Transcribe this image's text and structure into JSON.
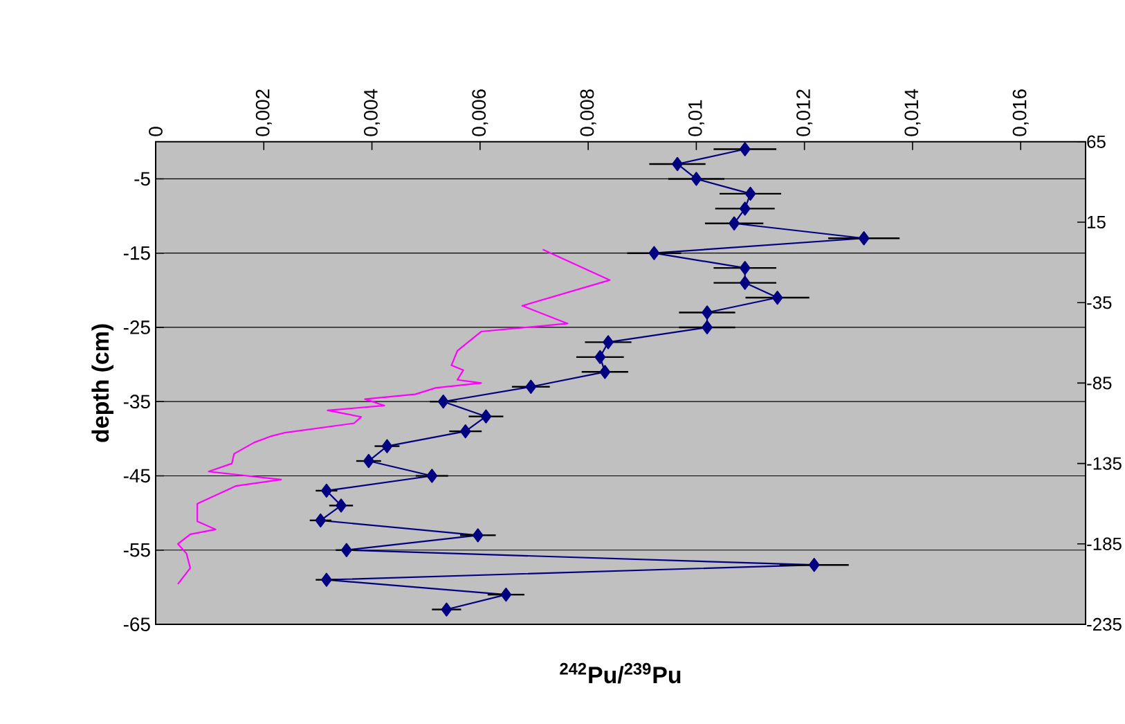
{
  "chart_data": {
    "type": "line",
    "xlabel": "$^{242}$Pu/$^{239}$Pu",
    "ylabel": "depth (cm)",
    "xlim": [
      0,
      0.0172
    ],
    "xticks": [
      0,
      {
        "value": 0.002,
        "label": "0,002"
      },
      {
        "value": 0.004,
        "label": "0,004"
      },
      {
        "value": 0.006,
        "label": "0,006"
      },
      {
        "value": 0.008,
        "label": "0,008"
      },
      {
        "value": 0.01,
        "label": "0,01"
      },
      {
        "value": 0.012,
        "label": "0,012"
      },
      {
        "value": 0.014,
        "label": "0,014"
      },
      {
        "value": 0.016,
        "label": "0,016"
      }
    ],
    "ylim": [
      -65,
      0
    ],
    "yticks": [
      -5,
      -15,
      -25,
      -35,
      -45,
      -55,
      -65
    ],
    "y2lim": [
      -235,
      65
    ],
    "y2ticks": [
      65,
      15,
      -35,
      -85,
      -135,
      -185,
      -235
    ],
    "grid": "y",
    "series": [
      {
        "color": "#000080",
        "marker": "diamond",
        "x": [
          0.0109,
          0.00965,
          0.01,
          0.011,
          0.0109,
          0.0107,
          0.0131,
          0.00922,
          0.0109,
          0.0109,
          0.0115,
          0.0102,
          0.0102,
          0.00837,
          0.00822,
          0.00831,
          0.00694,
          0.00532,
          0.00611,
          0.00573,
          0.00428,
          0.00394,
          0.00511,
          0.00316,
          0.00343,
          0.00305,
          0.00596,
          0.00353,
          0.01218,
          0.00316,
          0.00648,
          0.00538
        ],
        "values": [
          -1,
          -3,
          -5,
          -7,
          -9,
          -11,
          -13,
          -15,
          -17,
          -19,
          -21,
          -23,
          -25,
          -27,
          -29,
          -31,
          -33,
          -35,
          -37,
          -39,
          -41,
          -43,
          -45,
          -47,
          -49,
          -51,
          -53,
          -55,
          -57,
          -59,
          -61,
          -63
        ],
        "xerrors": [
          0.00058,
          0.00052,
          0.00052,
          0.00057,
          0.00055,
          0.00054,
          0.00066,
          0.0005,
          0.00058,
          0.00058,
          0.00059,
          0.00052,
          0.00052,
          0.00043,
          0.00044,
          0.00043,
          0.00035,
          0.00025,
          0.00032,
          0.0003,
          0.00023,
          0.00023,
          0.0003,
          0.0002,
          0.00022,
          0.0002,
          0.00033,
          0.0002,
          0.00064,
          0.0002,
          0.00034,
          0.00027
        ]
      },
      {
        "color": "#ff00ff",
        "marker": "none",
        "axis": "y2",
        "x": [
          0.00716,
          0.0084,
          0.00678,
          0.00762,
          0.00602,
          0.00558,
          0.00547,
          0.00569,
          0.00558,
          0.00602,
          0.00518,
          0.0048,
          0.00387,
          0.00423,
          0.00318,
          0.0038,
          0.00367,
          0.00237,
          0.00214,
          0.00182,
          0.00145,
          0.00141,
          0.00098,
          0.00232,
          0.00148,
          0.00077,
          0.00077,
          0.00111,
          0.00064,
          0.00041,
          0.00057,
          0.00064,
          0.00041
        ],
        "values": [
          -2,
          -21,
          -37,
          -48,
          -53,
          -65,
          -74,
          -77,
          -83,
          -85,
          -88,
          -92,
          -95,
          -99,
          -102,
          -106,
          -110,
          -116,
          -118,
          -122,
          -129,
          -135,
          -140,
          -145,
          -149,
          -160,
          -171,
          -176,
          -179,
          -185,
          -191,
          -200,
          -210
        ]
      }
    ]
  }
}
